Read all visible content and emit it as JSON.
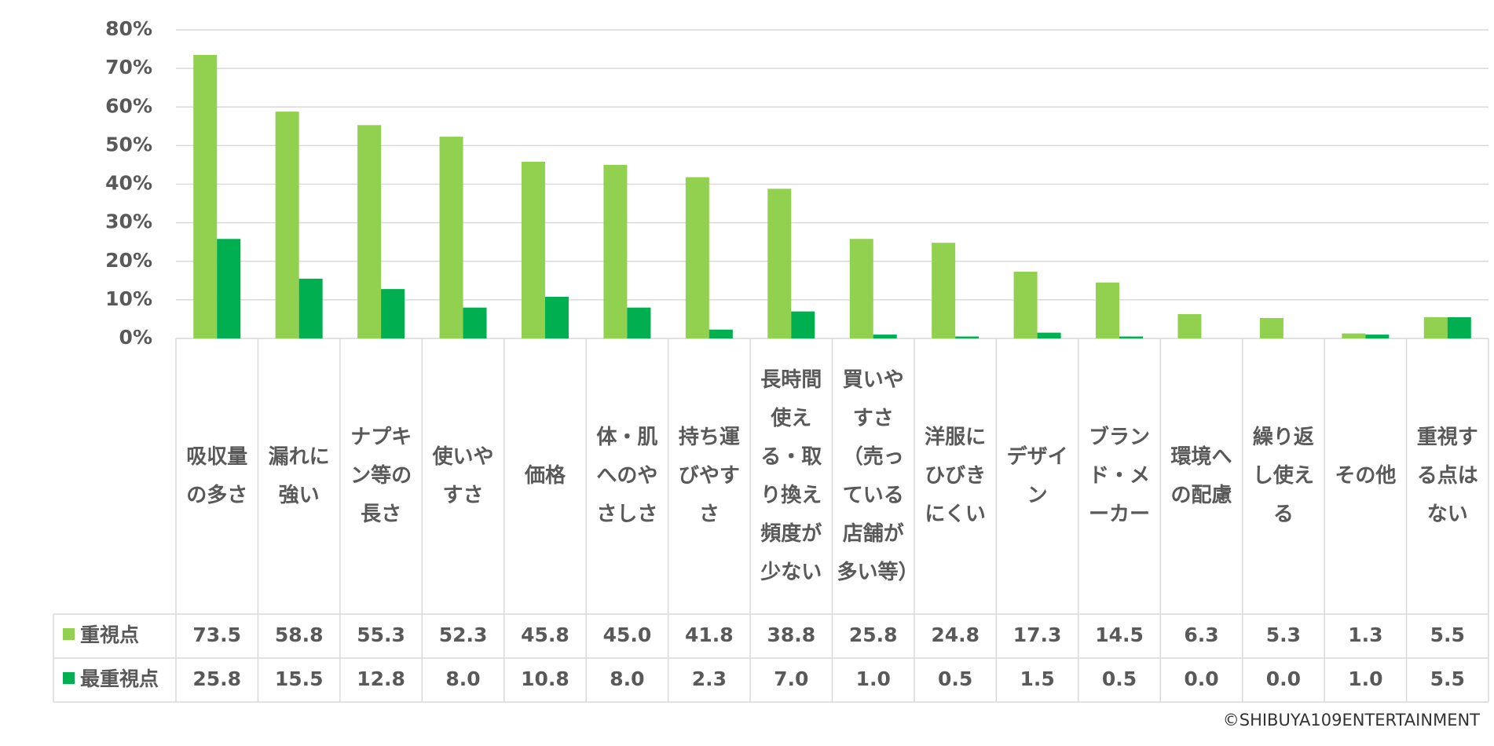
{
  "chart_data": {
    "type": "bar",
    "categories": [
      "吸収量の多さ",
      "漏れに強い",
      "ナプキン等の長さ",
      "使いやすさ",
      "価格",
      "体・肌へのやさしさ",
      "持ち運びやすさ",
      "長時間使える・取り換え頻度が少ない",
      "買いやすさ（売っている店舗が多い等）",
      "洋服にひびきにくい",
      "デザイン",
      "ブランド・メーカー",
      "環境への配慮",
      "繰り返し使える",
      "その他",
      "重視する点はない"
    ],
    "series": [
      {
        "name": "重視点",
        "color": "#92d050",
        "values": [
          73.5,
          58.8,
          55.3,
          52.3,
          45.8,
          45.0,
          41.8,
          38.8,
          25.8,
          24.8,
          17.3,
          14.5,
          6.3,
          5.3,
          1.3,
          5.5
        ],
        "value_labels": [
          "73.5",
          "58.8",
          "55.3",
          "52.3",
          "45.8",
          "45.0",
          "41.8",
          "38.8",
          "25.8",
          "24.8",
          "17.3",
          "14.5",
          "6.3",
          "5.3",
          "1.3",
          "5.5"
        ]
      },
      {
        "name": "最重視点",
        "color": "#00b050",
        "values": [
          25.8,
          15.5,
          12.8,
          8.0,
          10.8,
          8.0,
          2.3,
          7.0,
          1.0,
          0.5,
          1.5,
          0.5,
          0.0,
          0.0,
          1.0,
          5.5
        ],
        "value_labels": [
          "25.8",
          "15.5",
          "12.8",
          "8.0",
          "10.8",
          "8.0",
          "2.3",
          "7.0",
          "1.0",
          "0.5",
          "1.5",
          "0.5",
          "0.0",
          "0.0",
          "1.0",
          "5.5"
        ]
      }
    ],
    "ylim": [
      0,
      80
    ],
    "yticks": [
      {
        "value": 0,
        "label": "0%"
      },
      {
        "value": 10,
        "label": "10%"
      },
      {
        "value": 20,
        "label": "20%"
      },
      {
        "value": 30,
        "label": "30%"
      },
      {
        "value": 40,
        "label": "40%"
      },
      {
        "value": 50,
        "label": "50%"
      },
      {
        "value": 60,
        "label": "60%"
      },
      {
        "value": 70,
        "label": "70%"
      },
      {
        "value": 80,
        "label": "80%"
      }
    ],
    "grid": true,
    "copyright": "©SHIBUYA109ENTERTAINMENT"
  }
}
